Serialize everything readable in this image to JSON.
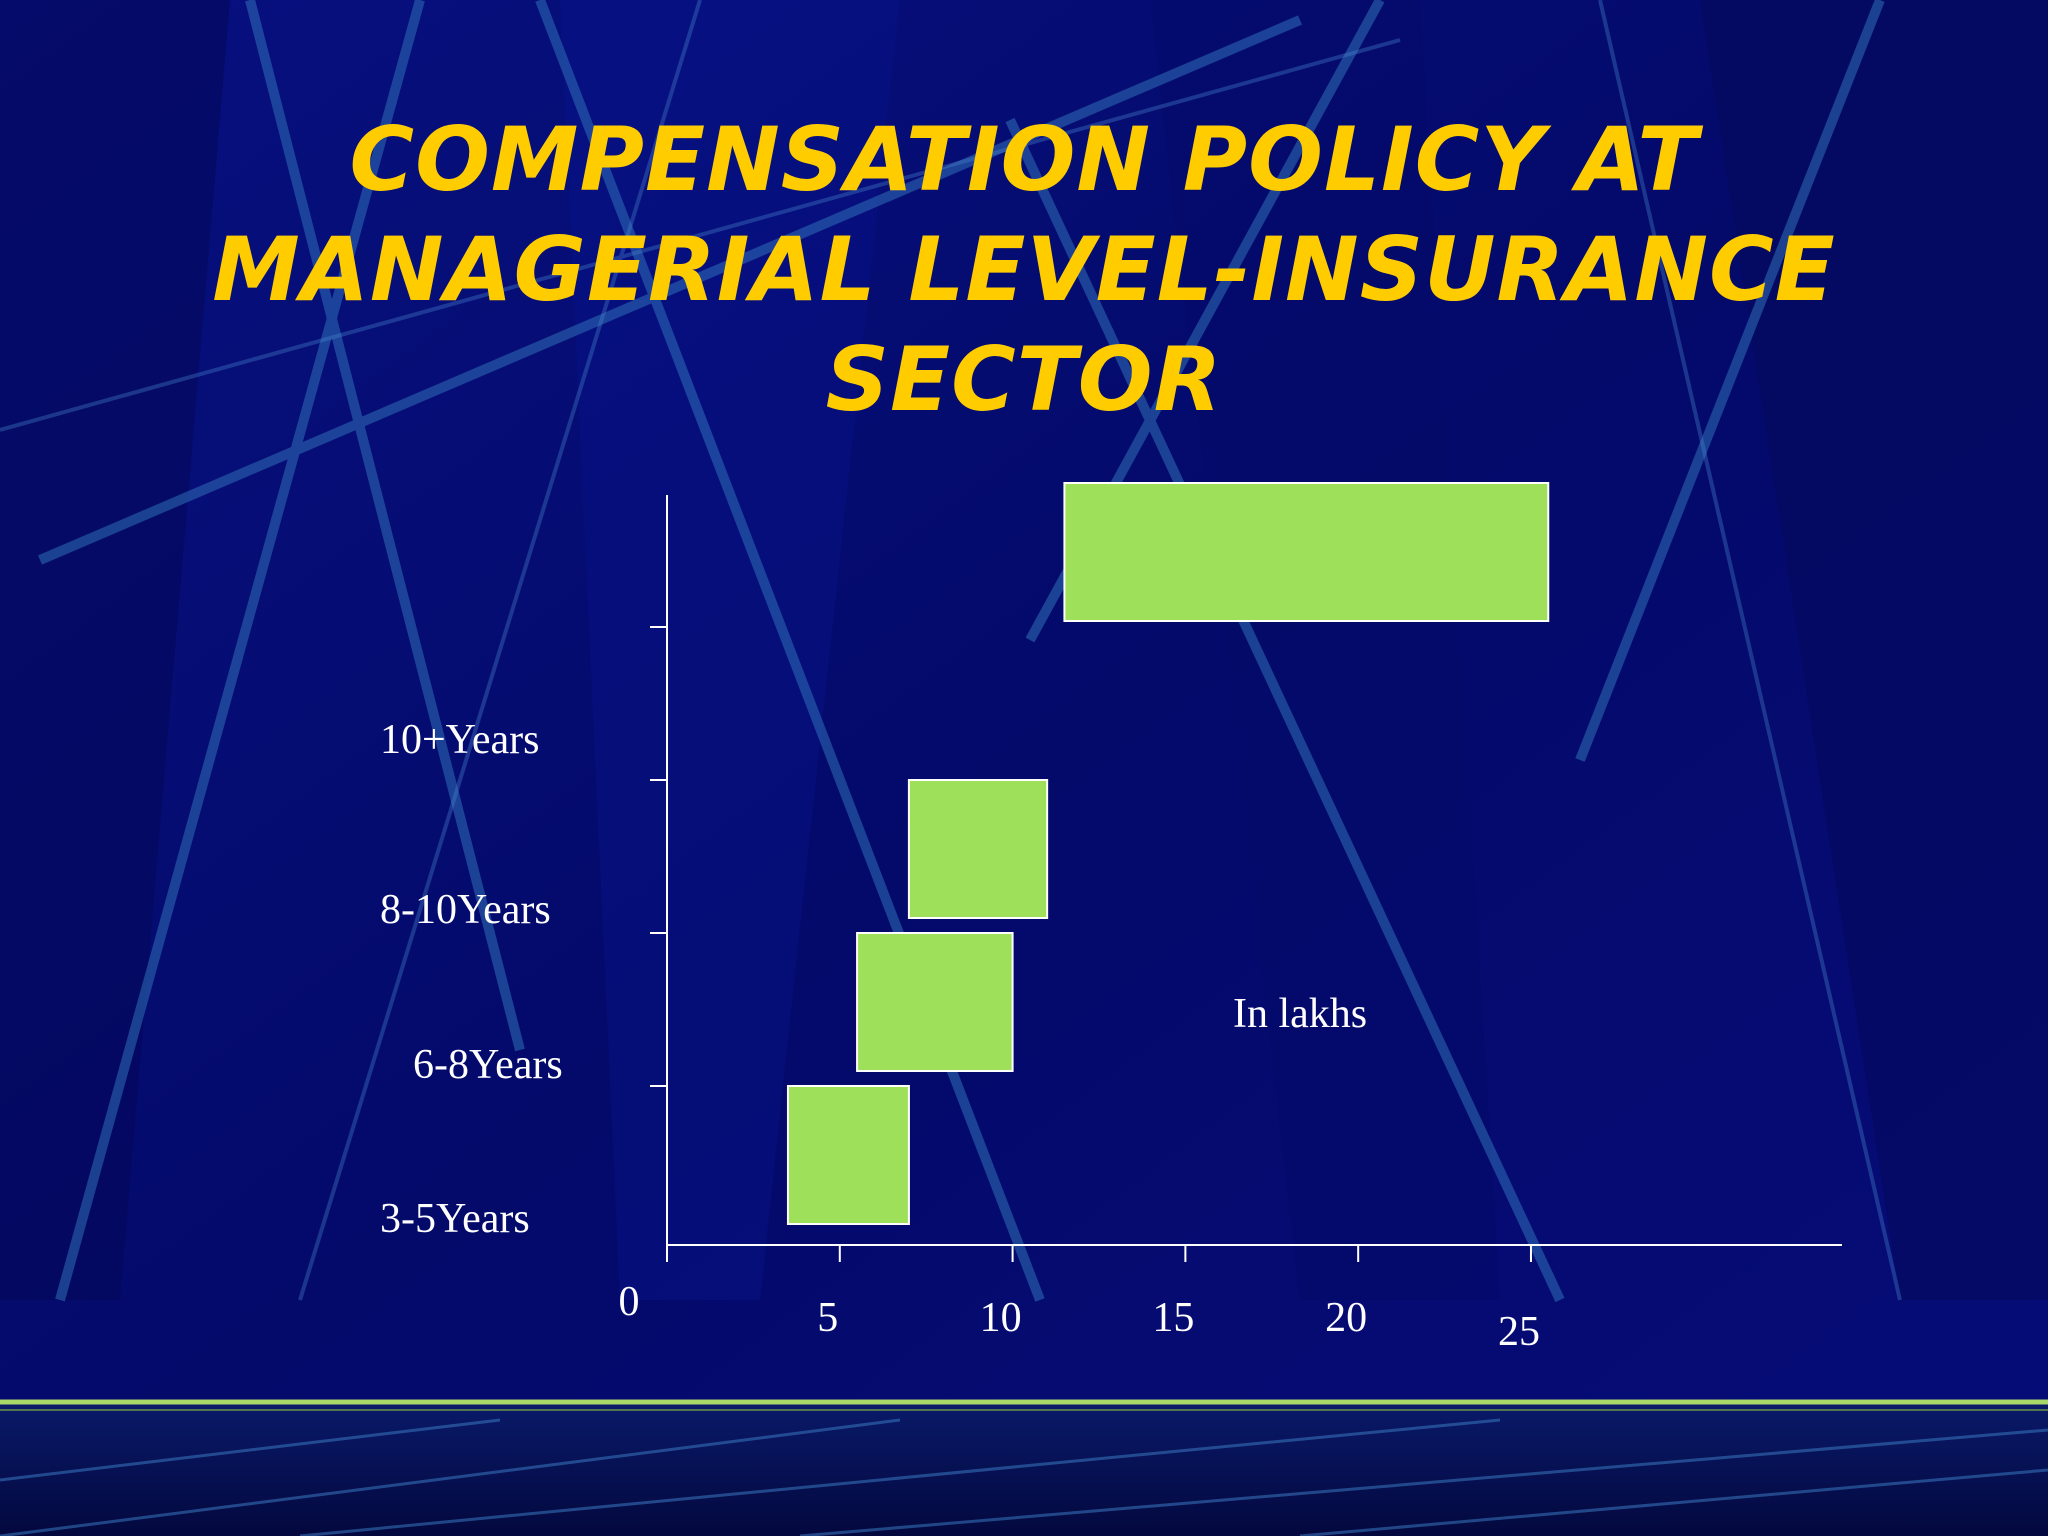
{
  "slide": {
    "title_lines": [
      "COMPENSATION POLICY AT",
      "MANAGERIAL LEVEL-INSURANCE",
      "SECTOR"
    ]
  },
  "colors": {
    "background": "#050a72",
    "title": "#ffcc00",
    "bar_fill": "#9ee05a",
    "bar_stroke": "#ffffff",
    "axis": "#ffffff",
    "text": "#ffffff",
    "accent_line": "#a8d86a"
  },
  "chart_data": {
    "type": "bar",
    "orientation": "horizontal",
    "title": "",
    "xlabel": "",
    "ylabel": "",
    "annotation": "In lakhs",
    "categories": [
      "3-5Years",
      "6-8Years",
      "8-10Years",
      "10+Years"
    ],
    "ranges": [
      {
        "category": "3-5Years",
        "min": 3.5,
        "max": 7
      },
      {
        "category": "6-8Years",
        "min": 5.5,
        "max": 10
      },
      {
        "category": "8-10Years",
        "min": 7,
        "max": 11
      },
      {
        "category": "10+Years",
        "min": 11.5,
        "max": 25.5
      }
    ],
    "x_ticks": [
      0,
      5,
      10,
      15,
      20,
      25
    ],
    "x_tick_labels": [
      "0",
      "5",
      "10",
      "15",
      "20",
      "25"
    ],
    "xlim": [
      0,
      34
    ],
    "grid": false,
    "legend": "none"
  }
}
